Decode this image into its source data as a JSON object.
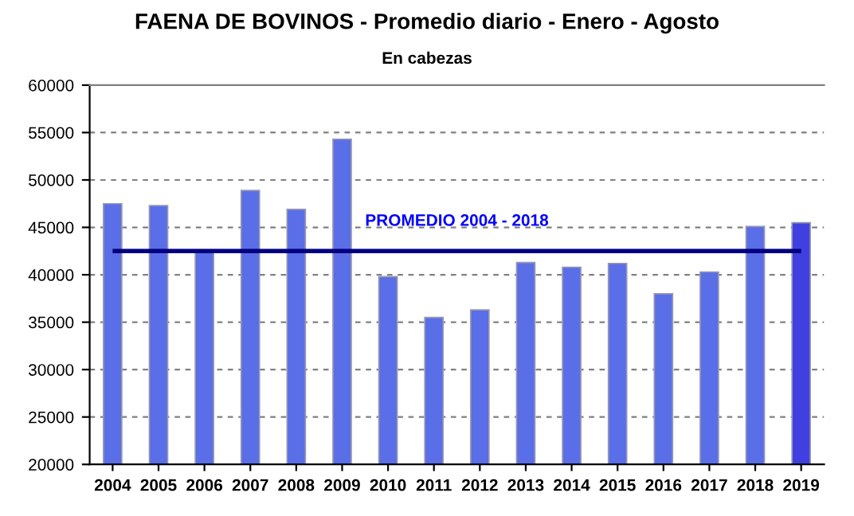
{
  "chart_data": {
    "type": "bar",
    "title": "FAENA DE BOVINOS - Promedio diario - Enero - Agosto",
    "subtitle": "En cabezas",
    "categories": [
      "2004",
      "2005",
      "2006",
      "2007",
      "2008",
      "2009",
      "2010",
      "2011",
      "2012",
      "2013",
      "2014",
      "2015",
      "2016",
      "2017",
      "2018",
      "2019"
    ],
    "values": [
      47500,
      47300,
      42600,
      48900,
      46900,
      54300,
      39800,
      35500,
      36300,
      41300,
      40800,
      41200,
      38000,
      40300,
      45100,
      45500
    ],
    "colors": [
      "#5a6ee8",
      "#5a6ee8",
      "#5a6ee8",
      "#5a6ee8",
      "#5a6ee8",
      "#5a6ee8",
      "#5a6ee8",
      "#5a6ee8",
      "#5a6ee8",
      "#5a6ee8",
      "#5a6ee8",
      "#5a6ee8",
      "#5a6ee8",
      "#5a6ee8",
      "#5a6ee8",
      "#4040e0"
    ],
    "ylim": [
      20000,
      60000
    ],
    "yticks": [
      20000,
      25000,
      30000,
      35000,
      40000,
      45000,
      50000,
      55000,
      60000
    ],
    "grid": "y",
    "ref_lines": [
      {
        "axis": "y",
        "value": 42500,
        "label": "PROMEDIO 2004 - 2018",
        "color": "#000080",
        "line_style": "solid"
      }
    ]
  }
}
